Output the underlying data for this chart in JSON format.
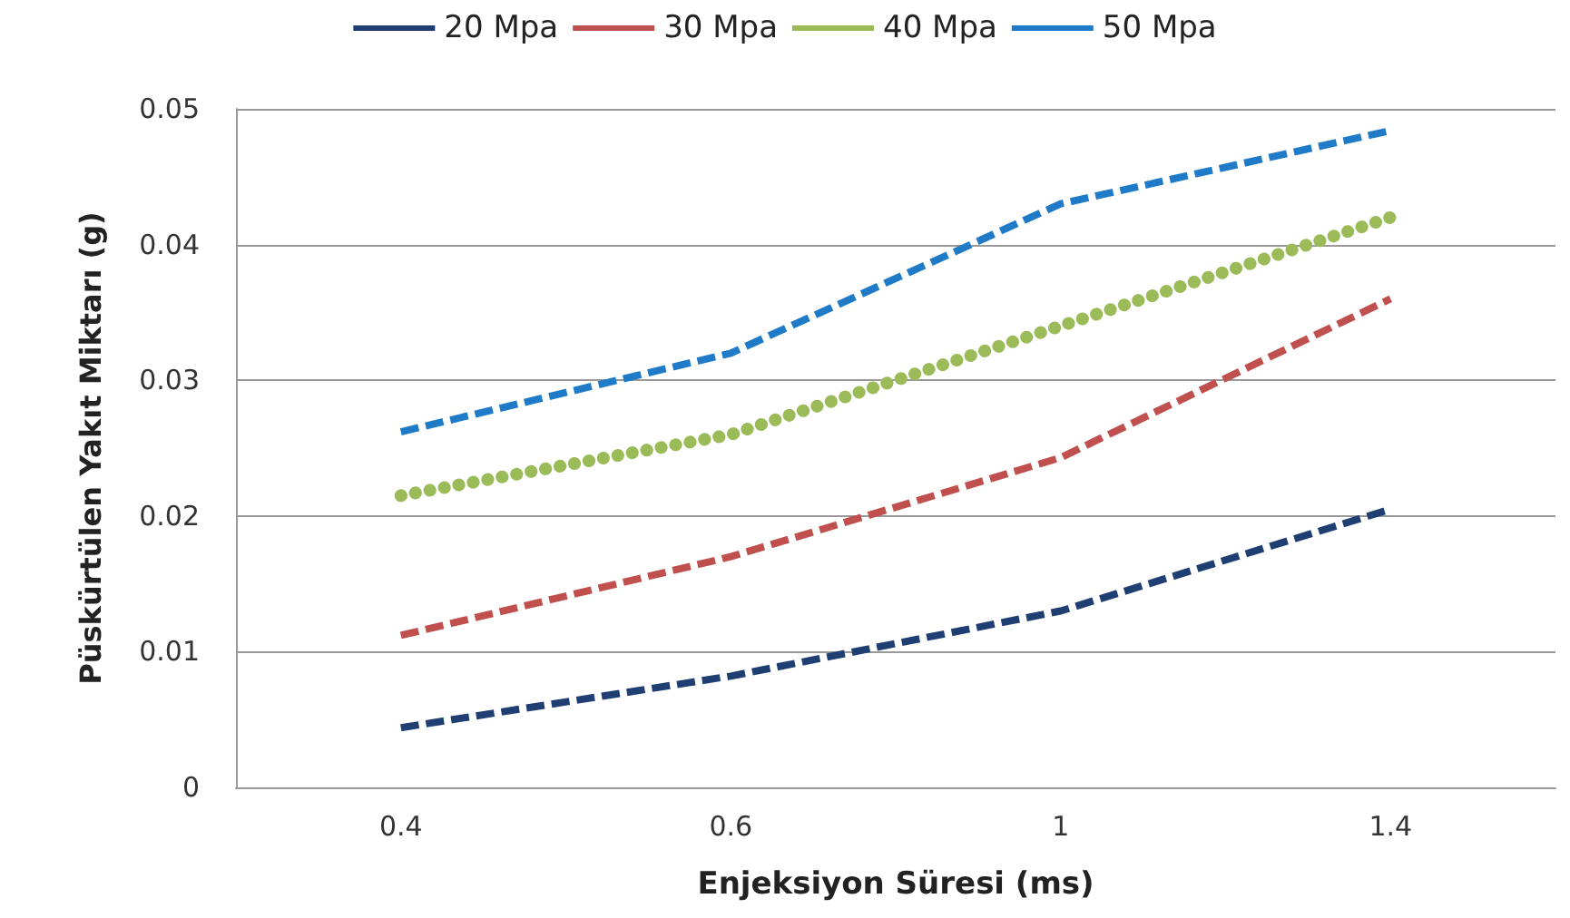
{
  "chart_data": {
    "type": "line",
    "xlabel": "Enjeksiyon Süresi (ms)",
    "ylabel": "Püskürtülen Yakıt Miktarı (g)",
    "categories": [
      "0.4",
      "0.6",
      "1",
      "1.4"
    ],
    "series": [
      {
        "name": "20 Mpa",
        "color": "#1f3f73",
        "line_style": "dashed",
        "values": [
          0.0044,
          0.0082,
          0.013,
          0.0205
        ]
      },
      {
        "name": "30 Mpa",
        "color": "#c0504d",
        "line_style": "dashed",
        "values": [
          0.0112,
          0.017,
          0.0243,
          0.036
        ]
      },
      {
        "name": "40 Mpa",
        "color": "#9bbb59",
        "line_style": "dotted",
        "values": [
          0.0215,
          0.026,
          0.034,
          0.042
        ]
      },
      {
        "name": "50 Mpa",
        "color": "#1f7bc8",
        "line_style": "dashed",
        "values": [
          0.0262,
          0.032,
          0.043,
          0.0484
        ]
      }
    ],
    "ylim": [
      0,
      0.05
    ],
    "yticks": [
      0,
      0.01,
      0.02,
      0.03,
      0.04,
      0.05
    ],
    "grid": "y",
    "legend": "top",
    "marker": "none"
  }
}
